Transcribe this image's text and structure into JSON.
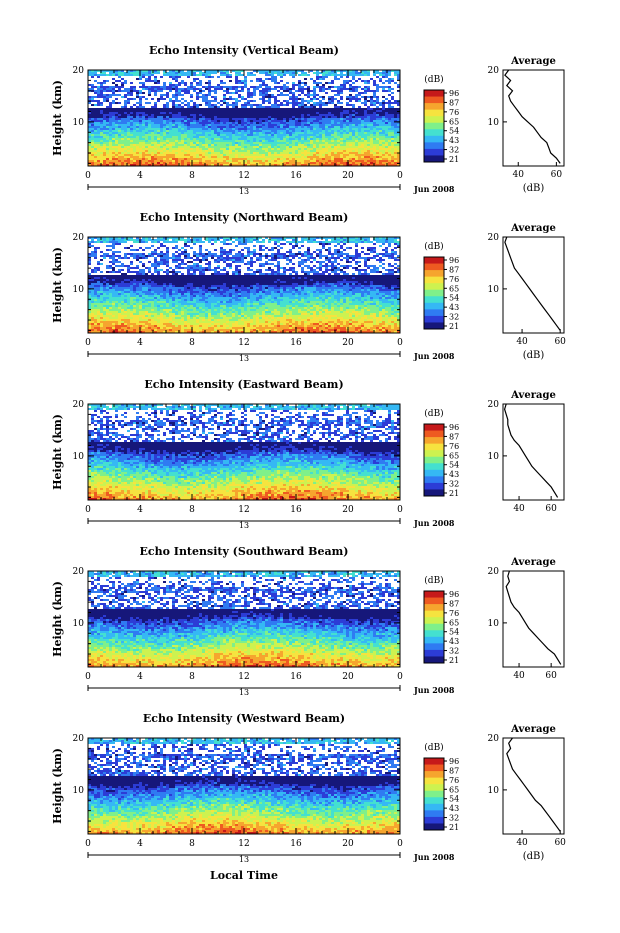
{
  "xlabel_common": "Local Time",
  "date_label": "Jun 2008",
  "day_label": "13",
  "colorbar": {
    "unit": "(dB)",
    "ticks": [
      "96",
      "87",
      "76",
      "65",
      "54",
      "43",
      "32",
      "21"
    ],
    "colors": [
      "#16177a",
      "#2c3cd6",
      "#2f7bf2",
      "#35b8f4",
      "#44e0d0",
      "#7ff08a",
      "#cdf250",
      "#f6e33f",
      "#f6a52e",
      "#ee5a21",
      "#c6191a"
    ]
  },
  "chart_data": [
    {
      "type": "heatmap",
      "title": "Echo Intensity (Vertical Beam)",
      "ylabel": "Height (km)",
      "x_ticks": [
        "0",
        "4",
        "8",
        "12",
        "16",
        "20",
        "0"
      ],
      "y_ticks": [
        "20",
        "10"
      ],
      "xlim": [
        0,
        24
      ],
      "ylim": [
        1.5,
        20
      ],
      "profile": {
        "title": "Average",
        "xlabel": "(dB)",
        "x_ticks": [
          "40",
          "60"
        ],
        "xlim": [
          32,
          64
        ],
        "y_ticks": [
          "20",
          "10"
        ],
        "height": [
          2,
          3,
          4,
          5,
          6,
          7,
          8,
          9,
          10,
          11,
          12,
          13,
          14,
          15,
          16,
          17,
          18,
          19,
          20
        ],
        "db": [
          62,
          60,
          57,
          56,
          55,
          52,
          50,
          48,
          45,
          42,
          40,
          38,
          36,
          35,
          37,
          34,
          36,
          33,
          35
        ]
      }
    },
    {
      "type": "heatmap",
      "title": "Echo Intensity (Northward Beam)",
      "ylabel": "Height (km)",
      "x_ticks": [
        "0",
        "4",
        "8",
        "12",
        "16",
        "20",
        "0"
      ],
      "y_ticks": [
        "20",
        "10"
      ],
      "xlim": [
        0,
        24
      ],
      "ylim": [
        1.5,
        20
      ],
      "profile": {
        "title": "Average",
        "xlabel": "(dB)",
        "x_ticks": [
          "40",
          "60"
        ],
        "xlim": [
          30,
          62
        ],
        "y_ticks": [
          "20",
          "10"
        ],
        "height": [
          2,
          3,
          4,
          5,
          6,
          7,
          8,
          9,
          10,
          11,
          12,
          13,
          14,
          15,
          16,
          17,
          18,
          19,
          20
        ],
        "db": [
          60,
          58,
          56,
          54,
          52,
          50,
          48,
          46,
          44,
          42,
          40,
          38,
          36,
          35,
          34,
          33,
          32,
          31,
          32
        ]
      }
    },
    {
      "type": "heatmap",
      "title": "Echo Intensity (Eastward Beam)",
      "ylabel": "Height (km)",
      "x_ticks": [
        "0",
        "4",
        "8",
        "12",
        "16",
        "20",
        "0"
      ],
      "y_ticks": [
        "20",
        "10"
      ],
      "xlim": [
        0,
        24
      ],
      "ylim": [
        1.5,
        20
      ],
      "profile": {
        "title": "Average",
        "xlabel": "",
        "x_ticks": [
          "40",
          "60"
        ],
        "xlim": [
          30,
          68
        ],
        "y_ticks": [
          "20",
          "10"
        ],
        "height": [
          2,
          3,
          4,
          5,
          6,
          7,
          8,
          9,
          10,
          11,
          12,
          13,
          14,
          15,
          16,
          17,
          18,
          19,
          20
        ],
        "db": [
          64,
          62,
          60,
          57,
          54,
          51,
          48,
          46,
          44,
          42,
          40,
          37,
          35,
          34,
          33,
          33,
          32,
          31,
          32
        ]
      }
    },
    {
      "type": "heatmap",
      "title": "Echo Intensity (Southward Beam)",
      "ylabel": "Height (km)",
      "x_ticks": [
        "0",
        "4",
        "8",
        "12",
        "16",
        "20",
        "0"
      ],
      "y_ticks": [
        "20",
        "10"
      ],
      "xlim": [
        0,
        24
      ],
      "ylim": [
        1.5,
        20
      ],
      "profile": {
        "title": "Average",
        "xlabel": "",
        "x_ticks": [
          "40",
          "60"
        ],
        "xlim": [
          30,
          68
        ],
        "y_ticks": [
          "20",
          "10"
        ],
        "height": [
          2,
          3,
          4,
          5,
          6,
          7,
          8,
          9,
          10,
          11,
          12,
          13,
          14,
          15,
          16,
          17,
          18,
          19,
          20
        ],
        "db": [
          66,
          64,
          62,
          58,
          55,
          52,
          49,
          46,
          44,
          42,
          40,
          37,
          35,
          34,
          33,
          32,
          34,
          33,
          34
        ]
      }
    },
    {
      "type": "heatmap",
      "title": "Echo Intensity (Westward Beam)",
      "ylabel": "Height (km)",
      "x_ticks": [
        "0",
        "4",
        "8",
        "12",
        "16",
        "20",
        "0"
      ],
      "y_ticks": [
        "20",
        "10"
      ],
      "xlim": [
        0,
        24
      ],
      "ylim": [
        1.5,
        20
      ],
      "profile": {
        "title": "Average",
        "xlabel": "(dB)",
        "x_ticks": [
          "40",
          "60"
        ],
        "xlim": [
          30,
          62
        ],
        "y_ticks": [
          "20",
          "10"
        ],
        "height": [
          2,
          3,
          4,
          5,
          6,
          7,
          8,
          9,
          10,
          11,
          12,
          13,
          14,
          15,
          16,
          17,
          18,
          19,
          20
        ],
        "db": [
          60,
          58,
          56,
          54,
          52,
          50,
          47,
          45,
          43,
          41,
          39,
          37,
          35,
          34,
          33,
          32,
          34,
          33,
          35
        ]
      }
    }
  ]
}
